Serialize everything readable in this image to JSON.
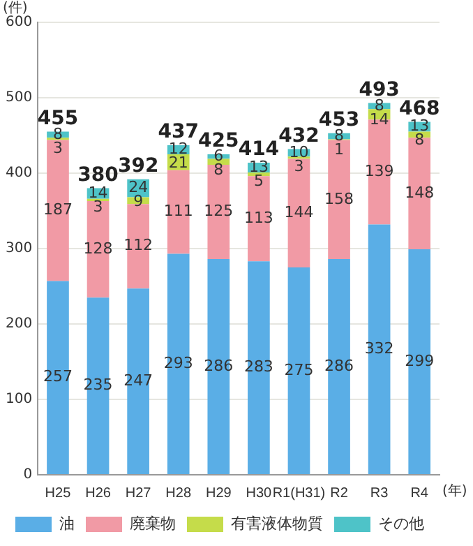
{
  "chart_data": {
    "type": "bar",
    "stacked": true,
    "ylabel": "(件)",
    "xlabel": "(年)",
    "categories": [
      "H25",
      "H26",
      "H27",
      "H28",
      "H29",
      "H30",
      "R1(H31)",
      "R2",
      "R3",
      "R4"
    ],
    "series": [
      {
        "name": "油",
        "color": "#5aaee6",
        "values": [
          257,
          235,
          247,
          293,
          286,
          283,
          275,
          286,
          332,
          299
        ]
      },
      {
        "name": "廃棄物",
        "color": "#f19aa5",
        "values": [
          187,
          128,
          112,
          111,
          125,
          113,
          144,
          158,
          139,
          148
        ]
      },
      {
        "name": "有害液体物質",
        "color": "#c5dc4a",
        "values": [
          3,
          3,
          9,
          21,
          8,
          5,
          3,
          1,
          14,
          8
        ]
      },
      {
        "name": "その他",
        "color": "#4ec3c8",
        "values": [
          8,
          14,
          24,
          12,
          6,
          13,
          10,
          8,
          8,
          13
        ]
      }
    ],
    "totals": [
      "455",
      "380",
      "392",
      "437",
      "425",
      "414",
      "432",
      "453",
      "493",
      "468"
    ],
    "data_labels": true,
    "ylim": [
      0,
      600
    ],
    "yticks": [
      0,
      100,
      200,
      300,
      400,
      500,
      600
    ],
    "grid": "y",
    "legend": "bottom"
  }
}
